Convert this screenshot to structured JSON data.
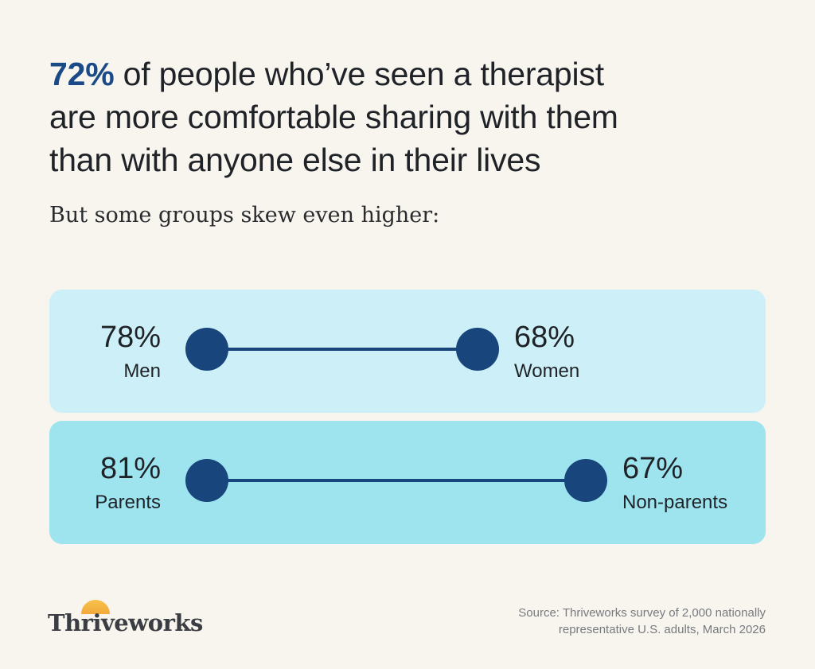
{
  "headline": {
    "highlight": "72%",
    "line1_rest": " of people who’ve seen a therapist",
    "line2": "are more comfortable sharing with them",
    "line3": "than with anyone else in their lives"
  },
  "subtitle": "But some groups skew even higher:",
  "chart_data": {
    "type": "dumbbell",
    "title": "72% of people who’ve seen a therapist are more comfortable sharing with them than with anyone else in their lives",
    "subtitle": "But some groups skew even higher:",
    "unit": "%",
    "rows": [
      {
        "left": {
          "label": "Men",
          "value": 78,
          "display": "78%"
        },
        "right": {
          "label": "Women",
          "value": 68,
          "display": "68%"
        },
        "panel_color": "#cdeff7"
      },
      {
        "left": {
          "label": "Parents",
          "value": 81,
          "display": "81%"
        },
        "right": {
          "label": "Non-parents",
          "value": 67,
          "display": "67%"
        },
        "panel_color": "#9de4ef"
      }
    ]
  },
  "colors": {
    "accent": "#1b4b86",
    "dot": "#17457c",
    "background": "#f8f5ef"
  },
  "logo": {
    "text": "Thriveworks",
    "icon": "sun-rising-icon"
  },
  "source": {
    "line1": "Source: Thriveworks survey of 2,000 nationally",
    "line2": "representative U.S. adults, March 2026"
  }
}
